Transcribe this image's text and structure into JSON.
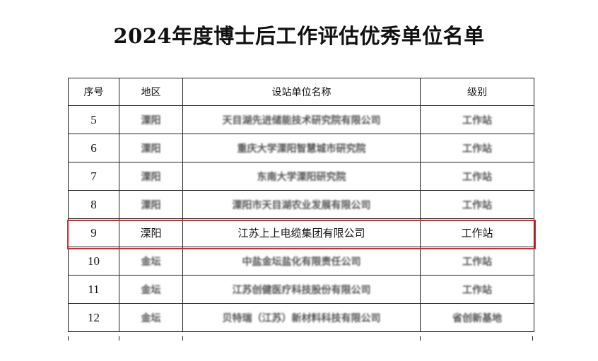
{
  "title": "2024年度博士后工作评估优秀单位名单",
  "table": {
    "headers": [
      "序号",
      "地区",
      "设站单位名称",
      "级别"
    ],
    "rows": [
      {
        "no": "5",
        "region": "溧阳",
        "name": "天目湖先进储能技术研究院有限公司",
        "level": "工作站",
        "highlighted": false
      },
      {
        "no": "6",
        "region": "溧阳",
        "name": "重庆大学溧阳智慧城市研究院",
        "level": "工作站",
        "highlighted": false
      },
      {
        "no": "7",
        "region": "溧阳",
        "name": "东南大学溧阳研究院",
        "level": "工作站",
        "highlighted": false
      },
      {
        "no": "8",
        "region": "溧阳",
        "name": "溧阳市天目湖农业发展有限公司",
        "level": "工作站",
        "highlighted": false
      },
      {
        "no": "9",
        "region": "溧阳",
        "name": "江苏上上电缆集团有限公司",
        "level": "工作站",
        "highlighted": true
      },
      {
        "no": "10",
        "region": "金坛",
        "name": "中盐金坛盐化有限责任公司",
        "level": "工作站",
        "highlighted": false
      },
      {
        "no": "11",
        "region": "金坛",
        "name": "江苏创健医疗科技股份有限公司",
        "level": "工作站",
        "highlighted": false
      },
      {
        "no": "12",
        "region": "金坛",
        "name": "贝特瑞（江苏）新材料科技有限公司",
        "level": "省创新基地",
        "highlighted": false
      }
    ]
  },
  "colors": {
    "highlight": "#e8202a"
  }
}
